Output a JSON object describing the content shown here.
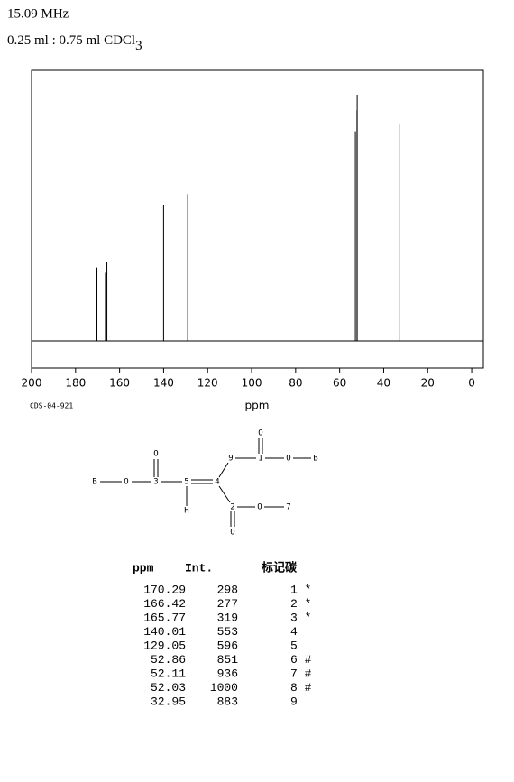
{
  "header": {
    "frequency": "15.09 MHz",
    "solvent": "0.25 ml : 0.75 ml CDCl",
    "solvent_sub": "3"
  },
  "chart_data": {
    "type": "stick",
    "x": [
      170.29,
      166.42,
      165.77,
      140.01,
      129.05,
      52.86,
      52.11,
      52.03,
      32.95
    ],
    "values": [
      298,
      277,
      319,
      553,
      596,
      851,
      936,
      1000,
      883
    ],
    "color": "#000000",
    "xlim": [
      200,
      -5.3
    ],
    "xticks": [
      200,
      180,
      160,
      140,
      120,
      100,
      80,
      60,
      40,
      20,
      0
    ],
    "xlabel": "ppm",
    "code": "CDS-04-921"
  },
  "structure": {
    "atoms": [
      "B",
      "O",
      "3",
      "O",
      "5",
      "H",
      "4",
      "9",
      "1",
      "O",
      "O",
      "B",
      "2",
      "O",
      "O",
      "7"
    ]
  },
  "table": {
    "headers": [
      "ppm",
      "Int.",
      "标记碳"
    ],
    "assignments": [
      "1 *",
      "2 *",
      "3 *",
      "4",
      "5",
      "6 #",
      "7 #",
      "8 #",
      "9"
    ]
  }
}
